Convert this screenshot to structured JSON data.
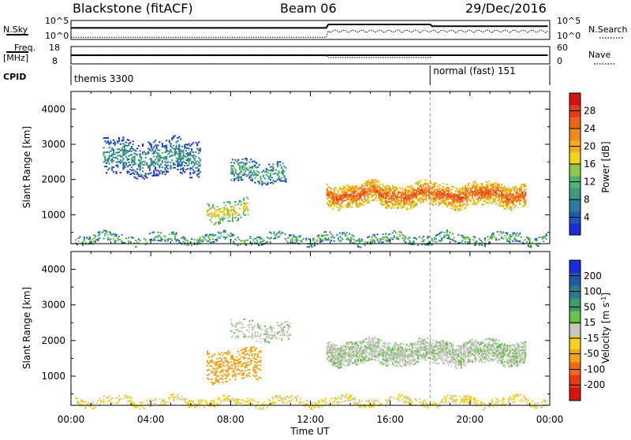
{
  "header": {
    "station": "Blackstone (fitACF)",
    "beam": "Beam 06",
    "date": "29/Dec/2016"
  },
  "top_panels": {
    "nsky_label": "N.Sky",
    "nsky_ticks": [
      "10^5",
      "10^0"
    ],
    "nsearch_label": "N.Search",
    "nsearch_ticks": [
      "10^5",
      "10^0"
    ],
    "freq_label": "Freq.",
    "freq_unit": "[MHz]",
    "freq_ticks": [
      "18",
      "8"
    ],
    "nave_label": "Nave",
    "nave_ticks": [
      "60",
      "0"
    ],
    "cpid_label": "CPID",
    "cpid_segments": [
      {
        "start_ut": 0,
        "end_ut": 18,
        "label": "themis 3300"
      },
      {
        "start_ut": 18,
        "end_ut": 24,
        "label": "normal (fast) 151"
      }
    ]
  },
  "axes": {
    "x_label": "Time UT",
    "x_ticks": [
      "00:00",
      "04:00",
      "08:00",
      "12:00",
      "16:00",
      "20:00",
      "00:00"
    ],
    "y_label": "Slant Range [km]",
    "y_ticks": [
      "1000",
      "2000",
      "3000",
      "4000"
    ]
  },
  "colorbars": {
    "power": {
      "label": "Power [dB]",
      "ticks": [
        "4",
        "8",
        "12",
        "16",
        "20",
        "24",
        "28"
      ],
      "colors": [
        "#1a2bd8",
        "#1f57b7",
        "#2d7a9a",
        "#3b9a82",
        "#4fb46a",
        "#8fc84a",
        "#f2d21a",
        "#f5ae1a",
        "#f08a1a",
        "#ee631a",
        "#e53a16",
        "#d11414"
      ]
    },
    "velocity": {
      "label": "Velocity [m s",
      "label_sup": "-1",
      "label_end": "]",
      "ticks": [
        "200",
        "100",
        "50",
        "15",
        "-15",
        "-50",
        "-100",
        "-200"
      ],
      "colors": [
        "#1a2bd8",
        "#225aa8",
        "#2d7a8a",
        "#3d9a6a",
        "#66c24a",
        "#c8c8c0",
        "#f2d21a",
        "#f5a21a",
        "#ee6a1a",
        "#e53a16",
        "#d11414"
      ]
    }
  },
  "chart_data": [
    {
      "type": "heatmap",
      "title": "Power",
      "xlabel": "Time UT",
      "ylabel": "Slant Range [km]",
      "xlim": [
        0,
        24
      ],
      "ylim": [
        180,
        4500
      ],
      "regions": [
        {
          "t_start": 12.8,
          "t_end": 22.8,
          "range_center": 1550,
          "range_halfwidth": 330,
          "power_db": 20
        },
        {
          "t_start": 6.8,
          "t_end": 8.9,
          "range_center": 1100,
          "range_halfwidth": 280,
          "power_db": 14
        },
        {
          "t_start": 8.0,
          "t_end": 10.8,
          "range_center": 2200,
          "range_halfwidth": 300,
          "power_db": 8
        },
        {
          "t_start": 1.6,
          "t_end": 6.5,
          "range_center": 2600,
          "range_halfwidth": 500,
          "power_db": 6
        },
        {
          "t_start": 0.2,
          "t_end": 23.8,
          "range_center": 300,
          "range_halfwidth": 120,
          "power_db": 10
        }
      ]
    },
    {
      "type": "heatmap",
      "title": "Velocity",
      "xlabel": "Time UT",
      "ylabel": "Slant Range [km]",
      "xlim": [
        0,
        24
      ],
      "ylim": [
        180,
        4500
      ],
      "regions": [
        {
          "t_start": 12.8,
          "t_end": 22.8,
          "range_center": 1650,
          "range_halfwidth": 330,
          "velocity": 0
        },
        {
          "t_start": 6.8,
          "t_end": 9.5,
          "range_center": 1300,
          "range_halfwidth": 450,
          "velocity": -50
        },
        {
          "t_start": 8.0,
          "t_end": 11.0,
          "range_center": 2250,
          "range_halfwidth": 250,
          "velocity": 0
        },
        {
          "t_start": 0.2,
          "t_end": 23.8,
          "range_center": 280,
          "range_halfwidth": 110,
          "velocity": -20
        }
      ]
    }
  ]
}
